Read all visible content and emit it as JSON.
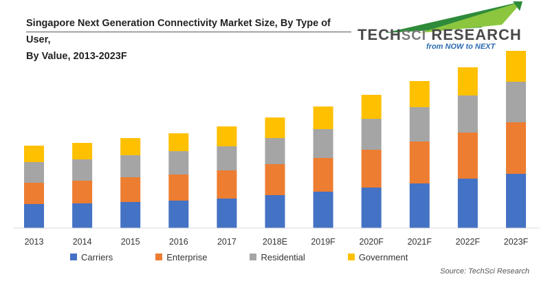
{
  "header": {
    "title_line1": "Singapore Next Generation Connectivity Market Size, By Type of User,",
    "title_line2": "By Value, 2013-2023F"
  },
  "logo": {
    "word_tech": "TECH",
    "word_sci": "SCI",
    "word_research": " RESEARCH",
    "tagline": "from NOW to NEXT",
    "colors": {
      "text": "#4a4a4a",
      "tagline": "#2a6ab0",
      "arrow_dark": "#2e8b3a",
      "arrow_light": "#8cc63f"
    }
  },
  "source": "Source: TechSci Research",
  "chart_data": {
    "type": "bar",
    "stacked": true,
    "categories": [
      "2013",
      "2014",
      "2015",
      "2016",
      "2017",
      "2018E",
      "2019F",
      "2020F",
      "2021F",
      "2022F",
      "2023F"
    ],
    "series": [
      {
        "name": "Carriers",
        "color": "#4472c4",
        "values": [
          35,
          36,
          38,
          40,
          43,
          48,
          53,
          59,
          65,
          72,
          79
        ]
      },
      {
        "name": "Enterprise",
        "color": "#ed7d31",
        "values": [
          31,
          33,
          36,
          38,
          41,
          45,
          49,
          55,
          61,
          67,
          75
        ]
      },
      {
        "name": "Residential",
        "color": "#a5a5a5",
        "values": [
          30,
          31,
          32,
          34,
          35,
          38,
          42,
          45,
          50,
          54,
          59
        ]
      },
      {
        "name": "Government",
        "color": "#ffc000",
        "values": [
          24,
          24,
          25,
          26,
          29,
          30,
          33,
          35,
          38,
          41,
          45
        ]
      }
    ],
    "ylim": [
      0,
      260
    ],
    "legend_position": "bottom",
    "grid": false
  }
}
